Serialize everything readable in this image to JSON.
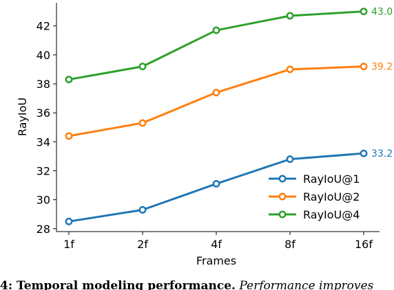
{
  "chart_data": {
    "type": "line",
    "xlabel": "Frames",
    "ylabel": "RayIoU",
    "categories": [
      "1f",
      "2f",
      "4f",
      "8f",
      "16f"
    ],
    "ylim": [
      27.8,
      43.6
    ],
    "yticks": [
      28,
      30,
      32,
      34,
      36,
      38,
      40,
      42
    ],
    "grid": false,
    "legend_position": "lower-right",
    "series": [
      {
        "name": "RayIoU@1",
        "color": "#1f77b4",
        "values": [
          28.5,
          29.3,
          31.1,
          32.8,
          33.2
        ],
        "end_label": "33.2"
      },
      {
        "name": "RayIoU@2",
        "color": "#ff7f0e",
        "values": [
          34.4,
          35.3,
          37.4,
          39.0,
          39.2
        ],
        "end_label": "39.2"
      },
      {
        "name": "RayIoU@4",
        "color": "#2ca02c",
        "values": [
          38.3,
          39.2,
          41.7,
          42.7,
          43.0
        ],
        "end_label": "43.0"
      }
    ]
  },
  "caption": {
    "bold": "4:  Temporal modeling performance.",
    "italic": " Performance improves"
  }
}
